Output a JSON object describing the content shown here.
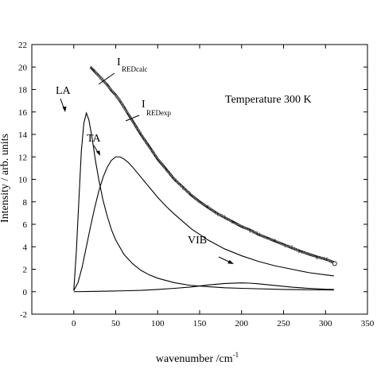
{
  "chart_data": {
    "type": "line",
    "title": "",
    "xlabel_main": "wavenumber /cm",
    "xlabel_sup": "-1",
    "ylabel": "Intensity / arb. units",
    "xlim": [
      -50,
      350
    ],
    "ylim": [
      -2,
      22
    ],
    "xticks": [
      0,
      50,
      100,
      150,
      200,
      250,
      300,
      350
    ],
    "yticks": [
      -2,
      0,
      2,
      4,
      6,
      8,
      10,
      12,
      14,
      16,
      18,
      20,
      22
    ],
    "grid": false,
    "annotations": {
      "temperature": "Temperature 300 K",
      "la": "LA",
      "ta": "TA",
      "vib": "VIB",
      "calc_main": "I",
      "calc_sub": "REDcalc",
      "exp_main": "I",
      "exp_sub": "REDexp"
    },
    "series": [
      {
        "name": "LA",
        "style": "thin",
        "x": [
          0,
          3,
          6,
          9,
          12,
          15,
          18,
          22,
          26,
          30,
          35,
          40,
          45,
          50,
          60,
          70,
          80,
          90,
          100,
          120,
          140,
          160,
          180,
          200,
          250,
          310
        ],
        "y": [
          0.1,
          3.5,
          8.0,
          12.5,
          15.0,
          15.9,
          15.3,
          13.6,
          11.6,
          9.9,
          8.1,
          6.7,
          5.5,
          4.6,
          3.3,
          2.5,
          1.9,
          1.5,
          1.2,
          0.8,
          0.55,
          0.45,
          0.35,
          0.3,
          0.2,
          0.15
        ]
      },
      {
        "name": "TA",
        "style": "thin",
        "x": [
          0,
          5,
          10,
          15,
          20,
          25,
          30,
          35,
          40,
          45,
          50,
          55,
          60,
          65,
          70,
          80,
          90,
          100,
          110,
          120,
          140,
          160,
          180,
          200,
          220,
          240,
          260,
          280,
          300,
          310
        ],
        "y": [
          0.1,
          0.8,
          2.2,
          4.0,
          5.8,
          7.5,
          9.0,
          10.2,
          11.1,
          11.7,
          12.0,
          12.0,
          11.8,
          11.5,
          11.1,
          10.2,
          9.3,
          8.4,
          7.6,
          6.9,
          5.6,
          4.6,
          3.8,
          3.2,
          2.7,
          2.3,
          2.0,
          1.7,
          1.5,
          1.4
        ]
      },
      {
        "name": "VIB",
        "style": "thin",
        "x": [
          0,
          20,
          40,
          60,
          80,
          100,
          120,
          140,
          160,
          180,
          200,
          210,
          220,
          240,
          260,
          280,
          300,
          310
        ],
        "y": [
          0.0,
          0.02,
          0.05,
          0.08,
          0.12,
          0.2,
          0.3,
          0.42,
          0.6,
          0.73,
          0.78,
          0.76,
          0.7,
          0.55,
          0.4,
          0.3,
          0.22,
          0.2
        ]
      },
      {
        "name": "I REDcalc",
        "style": "thick",
        "x": [
          20,
          25,
          30,
          35,
          40,
          45,
          50,
          55,
          60,
          65,
          70,
          80,
          90,
          100,
          110,
          120,
          130,
          140,
          150,
          160,
          170,
          180,
          190,
          200,
          210,
          220,
          230,
          240,
          250,
          260,
          270,
          280,
          290,
          300,
          310
        ],
        "y": [
          20.0,
          19.6,
          19.2,
          18.8,
          18.4,
          17.9,
          17.5,
          17.0,
          16.4,
          15.8,
          15.2,
          14.0,
          12.9,
          11.8,
          10.9,
          10.0,
          9.3,
          8.6,
          8.0,
          7.5,
          7.0,
          6.6,
          6.2,
          5.8,
          5.5,
          5.1,
          4.8,
          4.5,
          4.2,
          3.9,
          3.6,
          3.35,
          3.1,
          2.9,
          2.6
        ]
      },
      {
        "name": "I REDexp",
        "style": "noisy",
        "x": [
          20,
          25,
          30,
          35,
          40,
          45,
          50,
          55,
          60,
          65,
          70,
          80,
          90,
          100,
          110,
          120,
          130,
          140,
          150,
          160,
          170,
          180,
          190,
          200,
          210,
          220,
          230,
          240,
          250,
          260,
          270,
          280,
          290,
          300,
          310
        ],
        "y": [
          20.1,
          19.7,
          19.1,
          18.9,
          18.3,
          18.0,
          17.4,
          17.1,
          16.3,
          15.9,
          15.1,
          14.1,
          12.8,
          11.9,
          10.8,
          10.1,
          9.2,
          8.7,
          7.9,
          7.6,
          6.9,
          6.7,
          6.1,
          5.9,
          5.4,
          5.2,
          4.7,
          4.6,
          4.1,
          4.0,
          3.5,
          3.4,
          3.0,
          3.0,
          2.5
        ]
      }
    ]
  }
}
